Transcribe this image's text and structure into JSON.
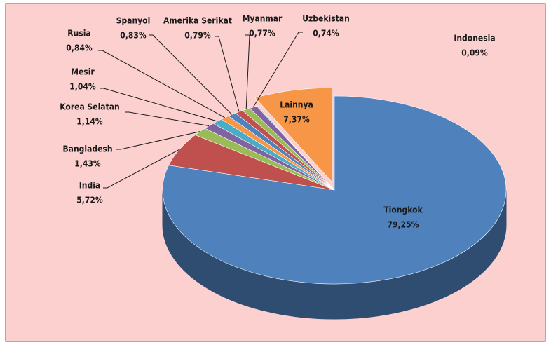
{
  "chart_data": {
    "type": "pie",
    "categories": [
      "Tiongkok",
      "India",
      "Bangladesh",
      "Korea Selatan",
      "Mesir",
      "Rusia",
      "Spanyol",
      "Amerika Serikat",
      "Myanmar",
      "Uzbekistan",
      "Indonesia",
      "Lainnya"
    ],
    "values": [
      79.25,
      5.72,
      1.43,
      1.14,
      1.04,
      0.84,
      0.83,
      0.79,
      0.77,
      0.74,
      0.09,
      7.37
    ],
    "value_labels": [
      "79,25%",
      "5,72%",
      "1,43%",
      "1,14%",
      "1,04%",
      "0,84%",
      "0,83%",
      "0,79%",
      "0,77%",
      "0,74%",
      "0,09%",
      "7,37%"
    ],
    "colors": [
      "#4f81bd",
      "#c0504d",
      "#9bbb59",
      "#8064a2",
      "#4bacc6",
      "#f79646",
      "#4f81bd",
      "#c0504d",
      "#9bbb59",
      "#8064a2",
      "#4bacc6",
      "#f79646"
    ]
  }
}
